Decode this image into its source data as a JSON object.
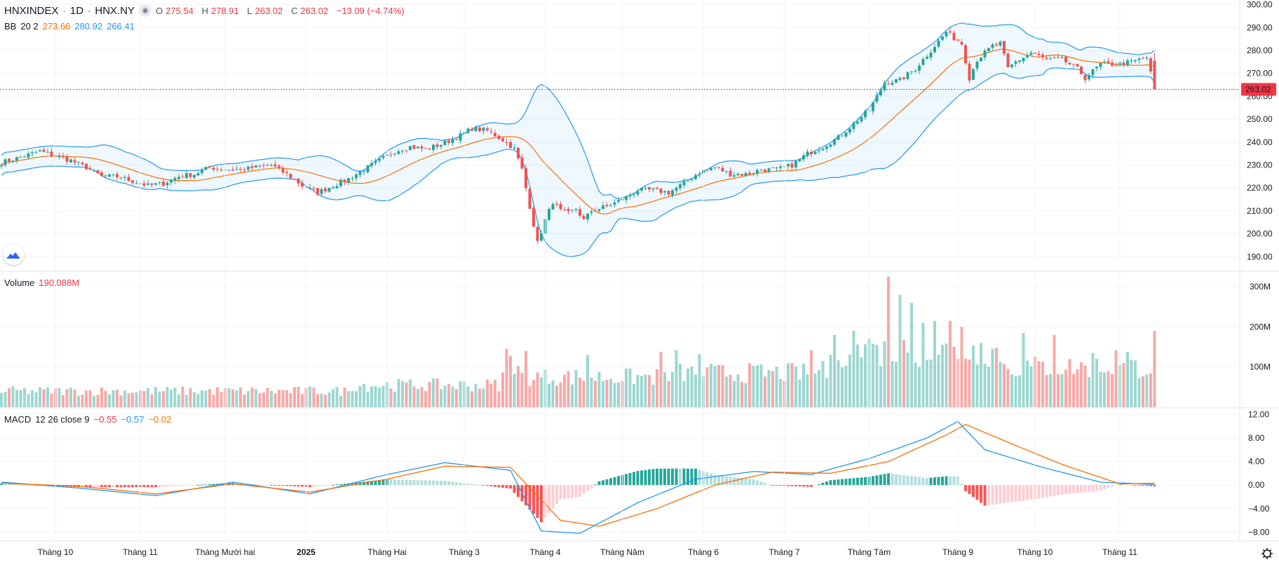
{
  "header": {
    "symbol": "HNXINDEX",
    "interval": "1D",
    "exchange": "HNX.NY",
    "open_label": "O",
    "open": "275.54",
    "high_label": "H",
    "high": "278.91",
    "low_label": "L",
    "low": "263.02",
    "close_label": "C",
    "close": "263.02",
    "change": "−13.09 (−4.74%)"
  },
  "bb_legend": {
    "name": "BB",
    "params": "20 2",
    "basis": "273.66",
    "upper": "280.92",
    "lower": "266.41"
  },
  "volume_legend": {
    "name": "Volume",
    "value": "190.088M"
  },
  "macd_legend": {
    "name": "MACD",
    "params": "12 26 close 9",
    "hist": "−0.55",
    "macd": "−0.57",
    "signal": "−0.02"
  },
  "colors": {
    "up": "#26a69a",
    "down": "#ef5350",
    "bb_band": "#2196f3",
    "bb_basis": "#ff6d00",
    "macd_line": "#2196f3",
    "signal_line": "#ff6d00",
    "price_tag": "#f23645"
  },
  "chart_data": [
    {
      "type": "candlestick",
      "title": "HNXINDEX · 1D · HNX.NY",
      "ylim": [
        184,
        302
      ],
      "y_ticks": [
        "300.00",
        "290.00",
        "280.00",
        "270.00",
        "260.00",
        "250.00",
        "240.00",
        "230.00",
        "220.00",
        "210.00",
        "200.00",
        "190.00"
      ],
      "last_price": "263.02",
      "x_ticks": [
        "Tháng 10",
        "Tháng 11",
        "Tháng Mười hai",
        "2025",
        "Tháng Hai",
        "Tháng 3",
        "Tháng 4",
        "Tháng Năm",
        "Tháng 6",
        "Tháng 7",
        "Tháng Tám",
        "Tháng 9",
        "Tháng 10",
        "Tháng 11"
      ],
      "close_anchors": [
        [
          0,
          231
        ],
        [
          6,
          234
        ],
        [
          10,
          236
        ],
        [
          14,
          234
        ],
        [
          18,
          232
        ],
        [
          22,
          229
        ],
        [
          26,
          225
        ],
        [
          30,
          225
        ],
        [
          34,
          223
        ],
        [
          38,
          221
        ],
        [
          42,
          222
        ],
        [
          46,
          225
        ],
        [
          50,
          226
        ],
        [
          54,
          229
        ],
        [
          58,
          228
        ],
        [
          62,
          228
        ],
        [
          66,
          229
        ],
        [
          70,
          230
        ],
        [
          74,
          226
        ],
        [
          78,
          221
        ],
        [
          82,
          218
        ],
        [
          86,
          221
        ],
        [
          90,
          224
        ],
        [
          94,
          228
        ],
        [
          98,
          232
        ],
        [
          102,
          236
        ],
        [
          106,
          238
        ],
        [
          110,
          237
        ],
        [
          114,
          239
        ],
        [
          118,
          242
        ],
        [
          122,
          246
        ],
        [
          126,
          245
        ],
        [
          130,
          241
        ],
        [
          133,
          237
        ],
        [
          135,
          228
        ],
        [
          137,
          212
        ],
        [
          139,
          196
        ],
        [
          141,
          206
        ],
        [
          143,
          214
        ],
        [
          145,
          210
        ],
        [
          147,
          209
        ],
        [
          149,
          211
        ],
        [
          151,
          206
        ],
        [
          153,
          210
        ],
        [
          157,
          212
        ],
        [
          161,
          215
        ],
        [
          165,
          219
        ],
        [
          169,
          219
        ],
        [
          173,
          218
        ],
        [
          177,
          222
        ],
        [
          181,
          227
        ],
        [
          185,
          229
        ],
        [
          189,
          226
        ],
        [
          193,
          226
        ],
        [
          197,
          228
        ],
        [
          201,
          228
        ],
        [
          205,
          230
        ],
        [
          209,
          235
        ],
        [
          213,
          238
        ],
        [
          217,
          242
        ],
        [
          221,
          248
        ],
        [
          225,
          254
        ],
        [
          229,
          266
        ],
        [
          233,
          267
        ],
        [
          237,
          272
        ],
        [
          241,
          280
        ],
        [
          245,
          288
        ],
        [
          249,
          283
        ],
        [
          251,
          268
        ],
        [
          253,
          276
        ],
        [
          257,
          282
        ],
        [
          259,
          283
        ],
        [
          261,
          272
        ],
        [
          263,
          275
        ],
        [
          267,
          279
        ],
        [
          271,
          276
        ],
        [
          275,
          276
        ],
        [
          279,
          272
        ],
        [
          281,
          268
        ],
        [
          285,
          274
        ],
        [
          289,
          274
        ],
        [
          293,
          275
        ],
        [
          297,
          277
        ],
        [
          299,
          263
        ]
      ]
    },
    {
      "type": "bar",
      "title": "Volume",
      "y_ticks": [
        "300M",
        "200M",
        "100M"
      ],
      "ylim": [
        0,
        330
      ],
      "unit": "M",
      "last_value": "190.088M",
      "spikes": [
        [
          131,
          145
        ],
        [
          132,
          128
        ],
        [
          134,
          102
        ],
        [
          136,
          140
        ],
        [
          152,
          130
        ],
        [
          171,
          138
        ],
        [
          175,
          142
        ],
        [
          181,
          132
        ],
        [
          210,
          142
        ],
        [
          213,
          115
        ],
        [
          215,
          130
        ],
        [
          221,
          190
        ],
        [
          225,
          170
        ],
        [
          227,
          155
        ],
        [
          230,
          325
        ],
        [
          233,
          280
        ],
        [
          236,
          260
        ],
        [
          239,
          210
        ],
        [
          242,
          215
        ],
        [
          246,
          215
        ],
        [
          249,
          200
        ],
        [
          254,
          160
        ],
        [
          265,
          185
        ],
        [
          273,
          180
        ],
        [
          283,
          135
        ],
        [
          289,
          142
        ],
        [
          292,
          138
        ],
        [
          299,
          190
        ]
      ]
    },
    {
      "type": "line",
      "title": "MACD",
      "y_ticks": [
        "12.00",
        "8.00",
        "4.00",
        "0.00",
        "−4.00",
        "−8.00"
      ],
      "ylim": [
        -9.5,
        13
      ],
      "series": [
        {
          "name": "MACD",
          "values_at": [
            [
              0,
              0.5
            ],
            [
              20,
              -0.5
            ],
            [
              40,
              -1.8
            ],
            [
              60,
              0.5
            ],
            [
              80,
              -1.5
            ],
            [
              100,
              1.8
            ],
            [
              115,
              3.8
            ],
            [
              132,
              2.5
            ],
            [
              140,
              -7.8
            ],
            [
              150,
              -8.2
            ],
            [
              165,
              -3
            ],
            [
              180,
              1
            ],
            [
              195,
              2.3
            ],
            [
              210,
              1.8
            ],
            [
              225,
              4.5
            ],
            [
              240,
              8
            ],
            [
              248,
              10.8
            ],
            [
              255,
              6
            ],
            [
              270,
              3
            ],
            [
              285,
              0.5
            ],
            [
              299,
              0.1
            ]
          ]
        },
        {
          "name": "Signal",
          "values_at": [
            [
              0,
              0.3
            ],
            [
              20,
              -0.2
            ],
            [
              40,
              -1.5
            ],
            [
              60,
              0.2
            ],
            [
              80,
              -1.2
            ],
            [
              100,
              1
            ],
            [
              115,
              3.2
            ],
            [
              132,
              3
            ],
            [
              145,
              -6
            ],
            [
              155,
              -7
            ],
            [
              170,
              -4
            ],
            [
              185,
              0
            ],
            [
              200,
              2.2
            ],
            [
              215,
              2
            ],
            [
              230,
              4
            ],
            [
              245,
              8.5
            ],
            [
              250,
              10.3
            ],
            [
              262,
              7
            ],
            [
              275,
              3.5
            ],
            [
              290,
              0.2
            ],
            [
              299,
              0.3
            ]
          ]
        }
      ]
    }
  ]
}
